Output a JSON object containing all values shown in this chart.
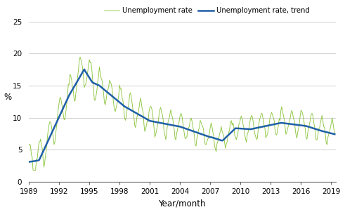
{
  "ylabel": "%",
  "xlabel": "Year/month",
  "xlim_start": 1989.0,
  "xlim_end": 2019.42,
  "ylim": [
    0,
    25
  ],
  "yticks": [
    0,
    5,
    10,
    15,
    20,
    25
  ],
  "xticks": [
    1989,
    1992,
    1995,
    1998,
    2001,
    2004,
    2007,
    2010,
    2013,
    2016,
    2019
  ],
  "line_color_raw": "#8dc63f",
  "line_color_trend": "#1f5fa6",
  "legend_labels": [
    "Unemployment rate",
    "Unemployment rate, trend"
  ],
  "background_color": "#ffffff",
  "grid_color": "#c8c8c8"
}
